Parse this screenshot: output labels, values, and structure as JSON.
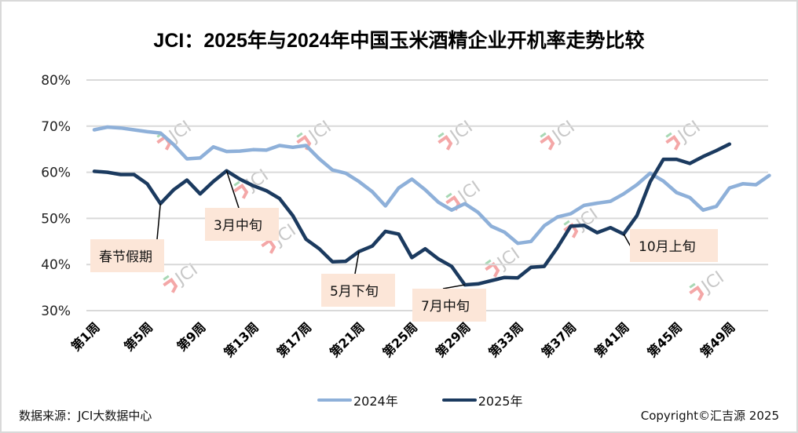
{
  "chart_data": {
    "type": "line",
    "title": "JCI：2025年与2024年中国玉米酒精企业开机率走势比较",
    "xlabel": "",
    "ylabel": "",
    "ylim": [
      0.3,
      0.8
    ],
    "yticks": [
      {
        "value": 0.8,
        "label": "80%"
      },
      {
        "value": 0.7,
        "label": "70%"
      },
      {
        "value": 0.6,
        "label": "60%"
      },
      {
        "value": 0.5,
        "label": "50%"
      },
      {
        "value": 0.4,
        "label": "40%"
      },
      {
        "value": 0.3,
        "label": "30%"
      }
    ],
    "grid": true,
    "x_count": 52,
    "xticks": [
      {
        "week": 1,
        "label": "第1周"
      },
      {
        "week": 5,
        "label": "第5周"
      },
      {
        "week": 9,
        "label": "第9周"
      },
      {
        "week": 13,
        "label": "第13周"
      },
      {
        "week": 17,
        "label": "第17周"
      },
      {
        "week": 21,
        "label": "第21周"
      },
      {
        "week": 25,
        "label": "第25周"
      },
      {
        "week": 29,
        "label": "第29周"
      },
      {
        "week": 33,
        "label": "第33周"
      },
      {
        "week": 37,
        "label": "第37周"
      },
      {
        "week": 41,
        "label": "第41周"
      },
      {
        "week": 45,
        "label": "第45周"
      },
      {
        "week": 49,
        "label": "第49周"
      }
    ],
    "series": [
      {
        "name": "2024年",
        "color": "#8eb0d9",
        "values": [
          0.692,
          0.698,
          0.696,
          0.692,
          0.688,
          0.685,
          0.66,
          0.629,
          0.631,
          0.655,
          0.645,
          0.646,
          0.649,
          0.648,
          0.658,
          0.654,
          0.658,
          0.629,
          0.605,
          0.598,
          0.58,
          0.558,
          0.527,
          0.566,
          0.585,
          0.562,
          0.535,
          0.518,
          0.532,
          0.513,
          0.483,
          0.47,
          0.446,
          0.45,
          0.484,
          0.503,
          0.51,
          0.528,
          0.533,
          0.537,
          0.553,
          0.573,
          0.598,
          0.581,
          0.556,
          0.545,
          0.518,
          0.526,
          0.566,
          0.575,
          0.573,
          0.593
        ]
      },
      {
        "name": "2025年",
        "color": "#1b3a5f",
        "values": [
          0.602,
          0.6,
          0.595,
          0.595,
          0.575,
          0.532,
          0.562,
          0.583,
          0.553,
          0.58,
          0.603,
          0.585,
          0.571,
          0.56,
          0.543,
          0.506,
          0.455,
          0.434,
          0.406,
          0.407,
          0.428,
          0.44,
          0.472,
          0.466,
          0.415,
          0.434,
          0.412,
          0.396,
          0.356,
          0.358,
          0.365,
          0.372,
          0.371,
          0.394,
          0.396,
          0.437,
          0.483,
          0.485,
          0.469,
          0.48,
          0.466,
          0.506,
          0.579,
          0.628,
          0.628,
          0.619,
          0.634,
          0.647,
          0.661
        ]
      }
    ],
    "annotations": [
      {
        "label": "春节假期",
        "series": "2025年",
        "week": 6
      },
      {
        "label": "3月中旬",
        "series": "2025年",
        "week": 11
      },
      {
        "label": "5月下旬",
        "series": "2025年",
        "week": 21
      },
      {
        "label": "7月中旬",
        "series": "2025年",
        "week": 29
      },
      {
        "label": "10月上旬",
        "series": "2025年",
        "week": 41
      }
    ],
    "legend": {
      "position": "bottom",
      "entries": [
        "2024年",
        "2025年"
      ]
    },
    "watermark": "JCI"
  },
  "footer": {
    "source": "数据来源：JCI大数据中心",
    "copyright": "Copyright©汇吉源 2025"
  },
  "colors": {
    "grid": "#d9d9d9",
    "annotation_bg": "#fce6d8",
    "watermark_red": "#f4a7a7",
    "watermark_green": "#a8d8b5"
  }
}
